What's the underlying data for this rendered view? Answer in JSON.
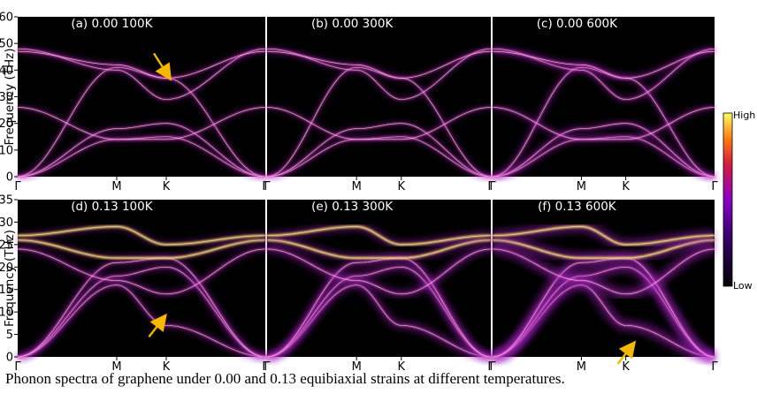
{
  "chart_data": [
    {
      "type": "band-structure",
      "title": "(a) 0.00 100K",
      "strain": 0.0,
      "temperature_K": 100,
      "ylabel": "Frequency (THz)",
      "ylim": [
        0,
        60
      ],
      "yticks": [
        0,
        10,
        20,
        30,
        40,
        50,
        60
      ],
      "x_ticks": [
        "Γ",
        "M",
        "K",
        "Γ"
      ],
      "arrow": {
        "x_path": 1.5,
        "y": 39
      },
      "broadening": "low"
    },
    {
      "type": "band-structure",
      "title": "(b) 0.00 300K",
      "strain": 0.0,
      "temperature_K": 300,
      "ylim": [
        0,
        60
      ],
      "x_ticks": [
        "Γ",
        "M",
        "K",
        "Γ"
      ],
      "broadening": "low"
    },
    {
      "type": "band-structure",
      "title": "(c) 0.00 600K",
      "strain": 0.0,
      "temperature_K": 600,
      "ylim": [
        0,
        60
      ],
      "x_ticks": [
        "Γ",
        "M",
        "K",
        "Γ"
      ],
      "broadening": "medium"
    },
    {
      "type": "band-structure",
      "title": "(d) 0.13 100K",
      "strain": 0.13,
      "temperature_K": 100,
      "ylabel": "Frequency (THz)",
      "ylim": [
        0,
        35
      ],
      "yticks": [
        0,
        5,
        10,
        15,
        20,
        25,
        30,
        35
      ],
      "x_ticks": [
        "Γ",
        "M",
        "K",
        "Γ"
      ],
      "arrow": {
        "x_path": 1.45,
        "y": 8
      },
      "broadening": "medium"
    },
    {
      "type": "band-structure",
      "title": "(e) 0.13 300K",
      "strain": 0.13,
      "temperature_K": 300,
      "ylim": [
        0,
        35
      ],
      "x_ticks": [
        "Γ",
        "M",
        "K",
        "Γ"
      ],
      "broadening": "high"
    },
    {
      "type": "band-structure",
      "title": "(f) 0.13 600K",
      "strain": 0.13,
      "temperature_K": 600,
      "ylim": [
        0,
        35
      ],
      "x_ticks": [
        "Γ",
        "M",
        "K",
        "Γ"
      ],
      "arrow": {
        "x_path": 1.55,
        "y": 2
      },
      "broadening": "very-high"
    }
  ],
  "bands": {
    "x_path": [
      0,
      1,
      1.5,
      2.5
    ],
    "strain_0.00": [
      [
        0,
        14,
        15,
        0
      ],
      [
        0,
        18,
        20,
        0
      ],
      [
        0,
        41,
        37,
        0
      ],
      [
        26,
        14,
        14,
        26
      ],
      [
        48,
        40,
        29,
        48
      ],
      [
        47,
        42,
        37,
        47
      ]
    ],
    "strain_0.13": [
      [
        0,
        16,
        7,
        0
      ],
      [
        0,
        18,
        20,
        0
      ],
      [
        0,
        21,
        22,
        0
      ],
      [
        24,
        17,
        14,
        24
      ],
      [
        26,
        22,
        22,
        26
      ],
      [
        27,
        29,
        25,
        27
      ]
    ]
  },
  "colorbar": {
    "high_label": "High",
    "low_label": "Low"
  },
  "colors": {
    "background": "#000000",
    "band_bright": "#ffe44d",
    "band_mid": "#ff5ad0",
    "arrow": "#f5b800"
  },
  "caption": "Phonon spectra of graphene under 0.00 and 0.13 equibiaxial strains at different temperatures."
}
